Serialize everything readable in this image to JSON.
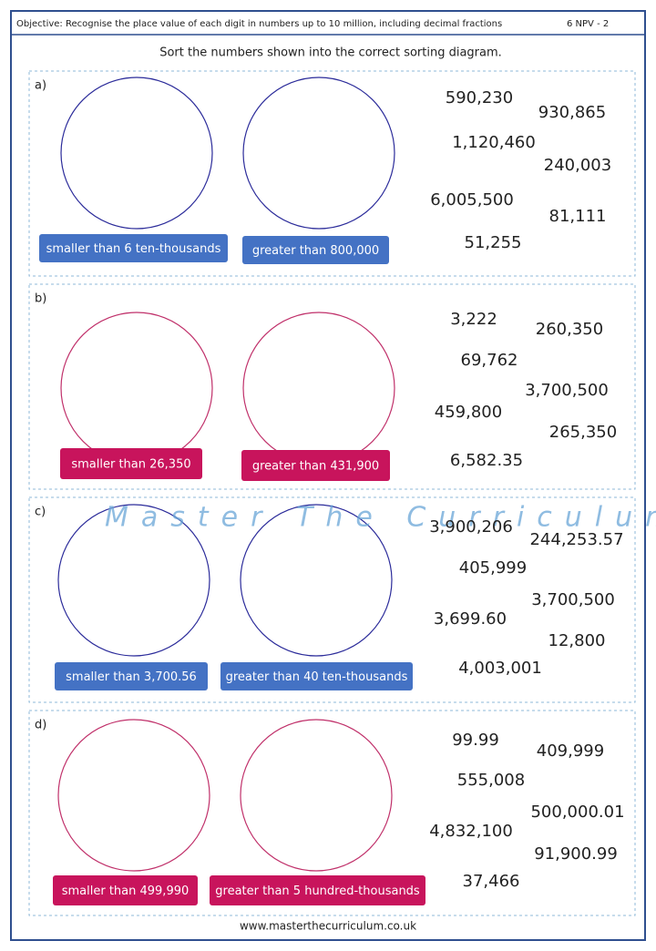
{
  "header": {
    "objective": "Objective: Recognise the place value of each digit in numbers up to 10 million, including decimal fractions",
    "code": "6 NPV - 2"
  },
  "instruction": "Sort the numbers shown into the correct sorting diagram.",
  "watermark": "Master The Curriculum",
  "sections": [
    {
      "label": "a)",
      "sets": [
        "smaller than 6 ten-thousands",
        "greater than 800,000"
      ],
      "numbers": [
        "590,230",
        "930,865",
        "1,120,460",
        "240,003",
        "6,005,500",
        "81,111",
        "51,255"
      ]
    },
    {
      "label": "b)",
      "sets": [
        "smaller than 26,350",
        "greater than 431,900"
      ],
      "numbers": [
        "3,222",
        "260,350",
        "69,762",
        "3,700,500",
        "459,800",
        "265,350",
        "6,582.35"
      ]
    },
    {
      "label": "c)",
      "sets": [
        "smaller than 3,700.56",
        "greater than 40 ten-thousands"
      ],
      "numbers": [
        "3,900,206",
        "244,253.57",
        "405,999",
        "3,700,500",
        "3,699.60",
        "12,800",
        "4,003,001"
      ]
    },
    {
      "label": "d)",
      "sets": [
        "smaller than 499,990",
        "greater than 5 hundred-thousands"
      ],
      "numbers": [
        "99.99",
        "409,999",
        "555,008",
        "500,000.01",
        "4,832,100",
        "91,900.99",
        "37,466"
      ]
    }
  ],
  "footer": "www.masterthecurriculum.co.uk"
}
